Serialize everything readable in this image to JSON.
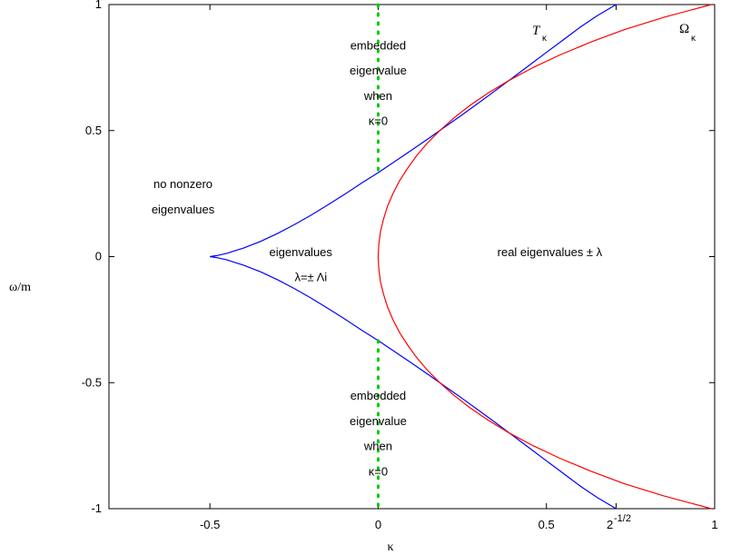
{
  "chart_data": {
    "type": "line",
    "title": "",
    "xlabel": "κ",
    "ylabel": "ω/m",
    "xlim": [
      -0.8,
      1.0
    ],
    "ylim": [
      -1.0,
      1.0
    ],
    "x_ticks": [
      {
        "value": -0.5,
        "label": "-0.5"
      },
      {
        "value": 0,
        "label": "0"
      },
      {
        "value": 0.5,
        "label": "0.5"
      },
      {
        "value": 1,
        "label": "1"
      }
    ],
    "extra_x_tick": {
      "value": 0.7071,
      "base": "2",
      "exponent": "-1/2"
    },
    "y_ticks": [
      {
        "value": 1,
        "label": "1"
      },
      {
        "value": 0.5,
        "label": "0.5"
      },
      {
        "value": 0,
        "label": "0"
      },
      {
        "value": -0.5,
        "label": "-0.5"
      },
      {
        "value": -1,
        "label": "-1"
      }
    ],
    "grid": false,
    "series": [
      {
        "name": "T",
        "subscript": "κ",
        "color": "#0000ff",
        "points": [
          [
            -0.5,
            0
          ],
          [
            -0.48,
            0.004
          ],
          [
            -0.45,
            0.013
          ],
          [
            -0.4,
            0.034
          ],
          [
            -0.35,
            0.06
          ],
          [
            -0.3,
            0.091
          ],
          [
            -0.25,
            0.126
          ],
          [
            -0.2,
            0.164
          ],
          [
            -0.15,
            0.205
          ],
          [
            -0.1,
            0.247
          ],
          [
            -0.05,
            0.291
          ],
          [
            0,
            0.333
          ],
          [
            0.05,
            0.378
          ],
          [
            0.1,
            0.423
          ],
          [
            0.15,
            0.469
          ],
          [
            0.2,
            0.516
          ],
          [
            0.25,
            0.563
          ],
          [
            0.3,
            0.611
          ],
          [
            0.35,
            0.66
          ],
          [
            0.4,
            0.71
          ],
          [
            0.45,
            0.76
          ],
          [
            0.5,
            0.81
          ],
          [
            0.55,
            0.86
          ],
          [
            0.6,
            0.91
          ],
          [
            0.65,
            0.955
          ],
          [
            0.7071,
            1.0
          ]
        ],
        "symmetric": true
      },
      {
        "name": "Ω",
        "subscript": "κ",
        "color": "#ff0000",
        "points": [
          [
            0.0,
            0
          ],
          [
            0.002,
            0.05
          ],
          [
            0.007,
            0.1
          ],
          [
            0.016,
            0.15
          ],
          [
            0.028,
            0.2
          ],
          [
            0.044,
            0.25
          ],
          [
            0.063,
            0.3
          ],
          [
            0.087,
            0.35
          ],
          [
            0.114,
            0.4
          ],
          [
            0.146,
            0.45
          ],
          [
            0.183,
            0.5
          ],
          [
            0.225,
            0.55
          ],
          [
            0.273,
            0.6
          ],
          [
            0.328,
            0.65
          ],
          [
            0.39,
            0.7
          ],
          [
            0.46,
            0.75
          ],
          [
            0.54,
            0.8
          ],
          [
            0.63,
            0.85
          ],
          [
            0.73,
            0.9
          ],
          [
            0.85,
            0.95
          ],
          [
            0.99,
            1.0
          ]
        ],
        "symmetric": true
      },
      {
        "name": "",
        "color": "#00cc00",
        "style": "dotted",
        "x": 0,
        "segments": [
          [
            0.333,
            1.0
          ],
          [
            -1.0,
            -0.333
          ]
        ]
      }
    ],
    "annotations": [
      {
        "text": "embedded",
        "x": 0,
        "y": 0.84
      },
      {
        "text": "eigenvalue",
        "x": 0,
        "y": 0.74
      },
      {
        "text": "when",
        "x": 0,
        "y": 0.64
      },
      {
        "text": "κ=0",
        "x": 0,
        "y": 0.54
      },
      {
        "text": "no nonzero",
        "x": -0.58,
        "y": 0.29
      },
      {
        "text": "eigenvalues",
        "x": -0.58,
        "y": 0.19
      },
      {
        "text": "eigenvalues",
        "x": -0.23,
        "y": 0.02
      },
      {
        "text": "λ=± Λi",
        "x": -0.2,
        "y": -0.08
      },
      {
        "text": "real eigenvalues   ± λ",
        "x": 0.51,
        "y": 0.02
      },
      {
        "text": "embedded",
        "x": 0,
        "y": -0.55
      },
      {
        "text": "eigenvalue",
        "x": 0,
        "y": -0.65
      },
      {
        "text": "when",
        "x": 0,
        "y": -0.75
      },
      {
        "text": "κ=0",
        "x": 0,
        "y": -0.85
      }
    ]
  }
}
